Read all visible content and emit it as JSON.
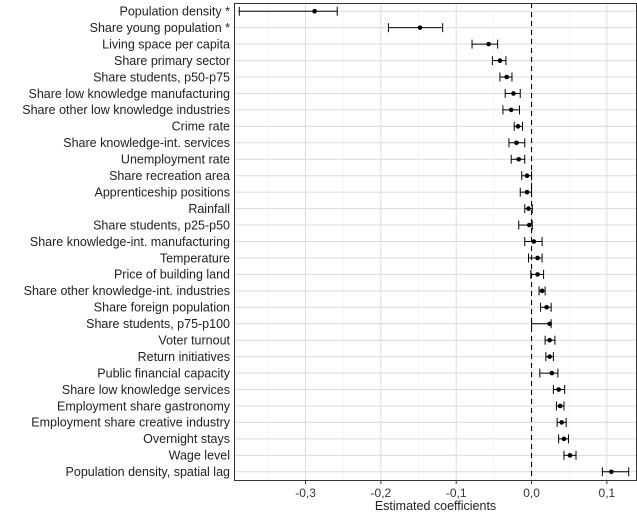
{
  "chart_data": {
    "type": "scatter",
    "style": "coefficient-plot-with-error-bars",
    "xlabel": "Estimated coefficients",
    "ylabel": "",
    "xlim": [
      -0.395,
      0.14
    ],
    "x_ticks": [
      -0.3,
      -0.2,
      -0.1,
      0.0,
      0.1
    ],
    "x_tick_labels": [
      "-0,3",
      "-0,2",
      "-0,1",
      "0,0",
      "0,1"
    ],
    "reference_line": 0.0,
    "grid": true,
    "colors": {
      "panel_border": "#333333",
      "grid_major": "#dcdcdc",
      "grid_minor": "#efefef",
      "point": "#000000",
      "zero_line": "#000000"
    },
    "rows": [
      {
        "label": "Population density *",
        "estimate": -0.288,
        "lower": -0.388,
        "upper": -0.258
      },
      {
        "label": "Share young population *",
        "estimate": -0.148,
        "lower": -0.19,
        "upper": -0.118
      },
      {
        "label": "Living space per capita",
        "estimate": -0.057,
        "lower": -0.079,
        "upper": -0.045
      },
      {
        "label": "Share primary sector",
        "estimate": -0.042,
        "lower": -0.052,
        "upper": -0.034
      },
      {
        "label": "Share students, p50-p75",
        "estimate": -0.033,
        "lower": -0.042,
        "upper": -0.026
      },
      {
        "label": "Share low knowledge manufacturing",
        "estimate": -0.024,
        "lower": -0.035,
        "upper": -0.015
      },
      {
        "label": "Share other low knowledge industries",
        "estimate": -0.027,
        "lower": -0.038,
        "upper": -0.016
      },
      {
        "label": "Crime rate",
        "estimate": -0.018,
        "lower": -0.023,
        "upper": -0.012
      },
      {
        "label": "Share knowledge-int. services",
        "estimate": -0.02,
        "lower": -0.03,
        "upper": -0.009
      },
      {
        "label": "Unemployment rate",
        "estimate": -0.017,
        "lower": -0.027,
        "upper": -0.009
      },
      {
        "label": "Share recreation area",
        "estimate": -0.006,
        "lower": -0.013,
        "upper": 0.0
      },
      {
        "label": "Apprenticeship positions",
        "estimate": -0.006,
        "lower": -0.015,
        "upper": 0.0
      },
      {
        "label": "Rainfall",
        "estimate": -0.004,
        "lower": -0.009,
        "upper": 0.001
      },
      {
        "label": "Share students, p25-p50",
        "estimate": -0.003,
        "lower": -0.017,
        "upper": 0.001
      },
      {
        "label": "Share knowledge-int. manufacturing",
        "estimate": 0.003,
        "lower": -0.009,
        "upper": 0.014
      },
      {
        "label": "Temperature",
        "estimate": 0.008,
        "lower": -0.004,
        "upper": 0.014
      },
      {
        "label": "Price of building land",
        "estimate": 0.008,
        "lower": -0.001,
        "upper": 0.016
      },
      {
        "label": "Share other knowledge-int. industries",
        "estimate": 0.014,
        "lower": 0.01,
        "upper": 0.018
      },
      {
        "label": "Share foreign population",
        "estimate": 0.02,
        "lower": 0.012,
        "upper": 0.026
      },
      {
        "label": "Share students, p75-p100",
        "estimate": 0.024,
        "lower": 0.0,
        "upper": 0.026
      },
      {
        "label": "Voter turnout",
        "estimate": 0.024,
        "lower": 0.018,
        "upper": 0.031
      },
      {
        "label": "Return initiatives",
        "estimate": 0.024,
        "lower": 0.019,
        "upper": 0.029
      },
      {
        "label": "Public financial capacity",
        "estimate": 0.027,
        "lower": 0.011,
        "upper": 0.035
      },
      {
        "label": "Share low knowledge services",
        "estimate": 0.036,
        "lower": 0.029,
        "upper": 0.044
      },
      {
        "label": "Employment share gastronomy",
        "estimate": 0.038,
        "lower": 0.033,
        "upper": 0.043
      },
      {
        "label": "Employment share creative industry",
        "estimate": 0.04,
        "lower": 0.034,
        "upper": 0.046
      },
      {
        "label": "Overnight stays",
        "estimate": 0.043,
        "lower": 0.036,
        "upper": 0.049
      },
      {
        "label": "Wage level",
        "estimate": 0.051,
        "lower": 0.043,
        "upper": 0.059
      },
      {
        "label": "Population density, spatial lag",
        "estimate": 0.106,
        "lower": 0.094,
        "upper": 0.129
      }
    ]
  }
}
